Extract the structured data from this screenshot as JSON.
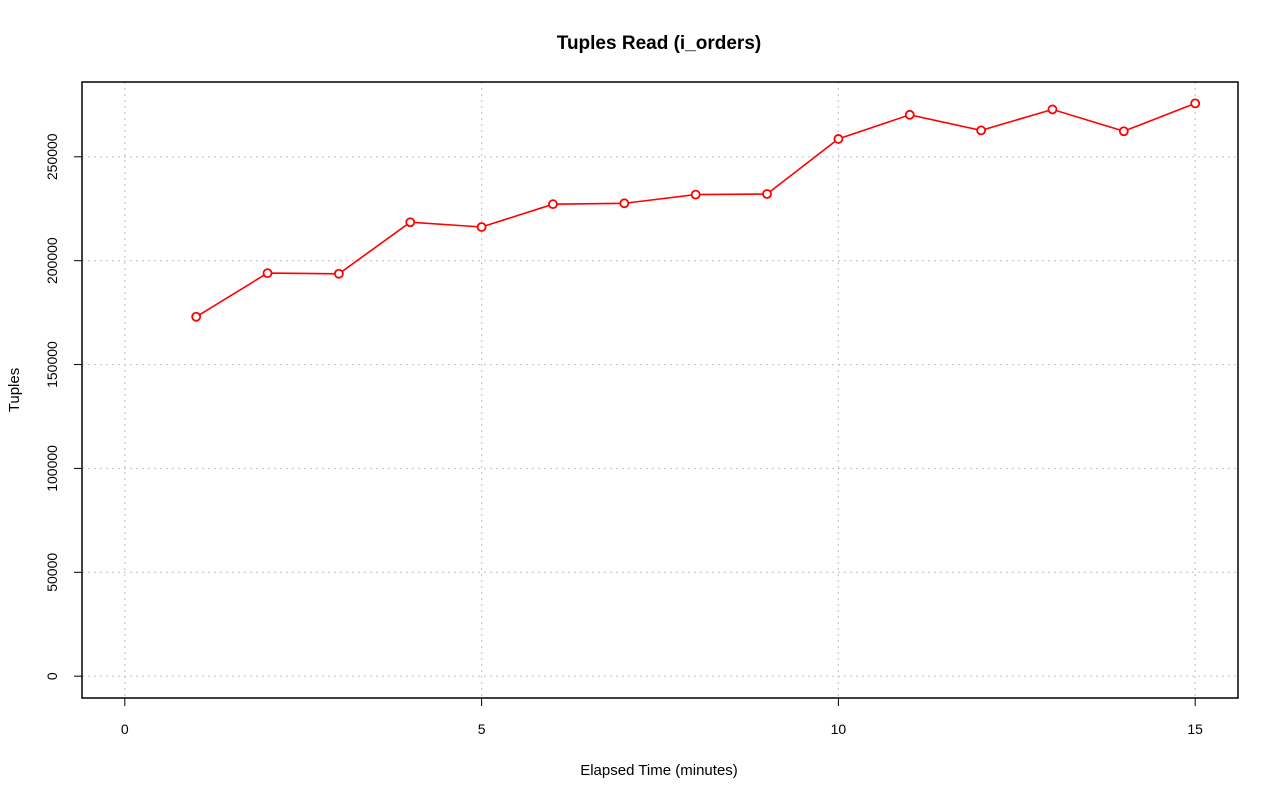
{
  "chart_data": {
    "type": "line",
    "title": "Tuples Read (i_orders)",
    "xlabel": "Elapsed Time (minutes)",
    "ylabel": "Tuples",
    "xlim": [
      -0.6,
      15.6
    ],
    "ylim": [
      -10500,
      286000
    ],
    "x_ticks": [
      0,
      5,
      10,
      15
    ],
    "y_ticks": [
      0,
      50000,
      100000,
      150000,
      200000,
      250000
    ],
    "grid": true,
    "series": [
      {
        "color": "#ff0000",
        "marker": "open-circle",
        "x": [
          1,
          2,
          3,
          4,
          5,
          6,
          7,
          8,
          9,
          10,
          11,
          12,
          13,
          14,
          15
        ],
        "y": [
          173000,
          194000,
          193700,
          218500,
          216200,
          227200,
          227600,
          231800,
          232100,
          258600,
          270200,
          262700,
          272800,
          262300,
          275700
        ]
      }
    ]
  }
}
